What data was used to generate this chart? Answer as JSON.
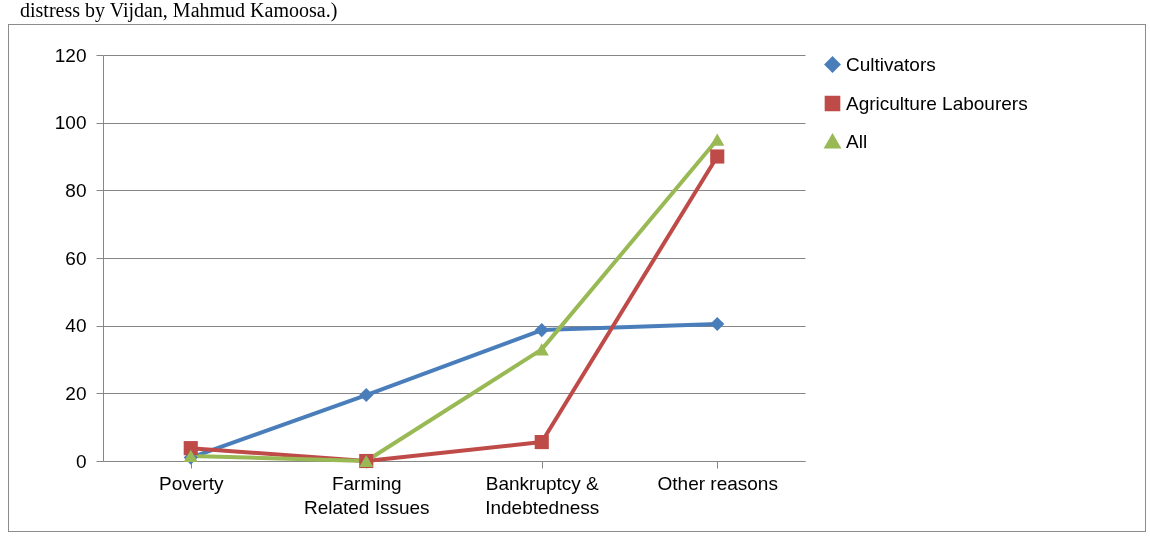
{
  "chart_data": {
    "type": "line",
    "annotations": [
      "distress by Vijdan, Mahmud Kamoosa.)"
    ],
    "categories": [
      "Poverty",
      "Farming Related Issues",
      "Bankruptcy & Indebtedness",
      "Other reasons"
    ],
    "series": [
      {
        "name": "Cultivators",
        "color": "#4a7ebb",
        "marker": "diamond",
        "values": [
          1,
          19.5,
          38.7,
          40.5
        ]
      },
      {
        "name": "Agriculture Labourers",
        "color": "#be4b48",
        "marker": "square",
        "values": [
          3.8,
          0,
          5.6,
          90
        ]
      },
      {
        "name": "All",
        "color": "#98b954",
        "marker": "triangle",
        "values": [
          1.5,
          0,
          33,
          95
        ]
      }
    ],
    "ylim": [
      0,
      120
    ],
    "yticks": [
      0,
      20,
      40,
      60,
      80,
      100,
      120
    ],
    "grid": "y",
    "legend": "right"
  }
}
